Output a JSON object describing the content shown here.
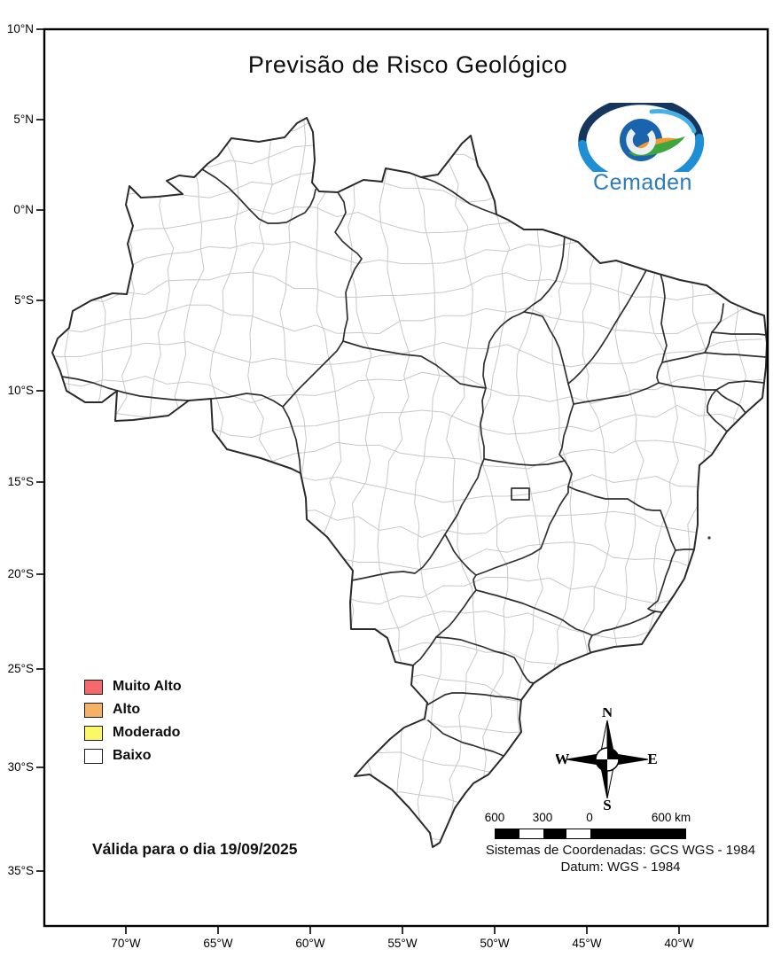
{
  "title": "Previsão de Risco Geológico",
  "logo": {
    "name": "Cemaden"
  },
  "map": {
    "legend": {
      "items": [
        {
          "label": "Muito Alto",
          "color": "#f4686e"
        },
        {
          "label": "Alto",
          "color": "#f5b266"
        },
        {
          "label": "Moderado",
          "color": "#faf863"
        },
        {
          "label": "Baixo",
          "color": "#ffffff"
        }
      ]
    },
    "valid_text": "Válida para o dia 19/09/2025",
    "axes": {
      "lat": [
        "10°N",
        "5°N",
        "0°N",
        "5°S",
        "10°S",
        "15°S",
        "20°S",
        "25°S",
        "30°S",
        "35°S"
      ],
      "lon": [
        "70°W",
        "65°W",
        "60°W",
        "55°W",
        "50°W",
        "45°W",
        "40°W"
      ]
    },
    "line_colors": {
      "state_border": "#303030",
      "municipal_border": "#c8c8c8",
      "country_outline": "#2a2a2a"
    }
  },
  "compass": {
    "north": "N",
    "south": "S",
    "east": "E",
    "west": "W"
  },
  "scalebar": {
    "labels": [
      "600",
      "300",
      "0"
    ],
    "right_label": "600 km"
  },
  "footer": {
    "coord_system": "Sistemas de Coordenadas: GCS WGS - 1984",
    "datum": "Datum: WGS - 1984"
  }
}
